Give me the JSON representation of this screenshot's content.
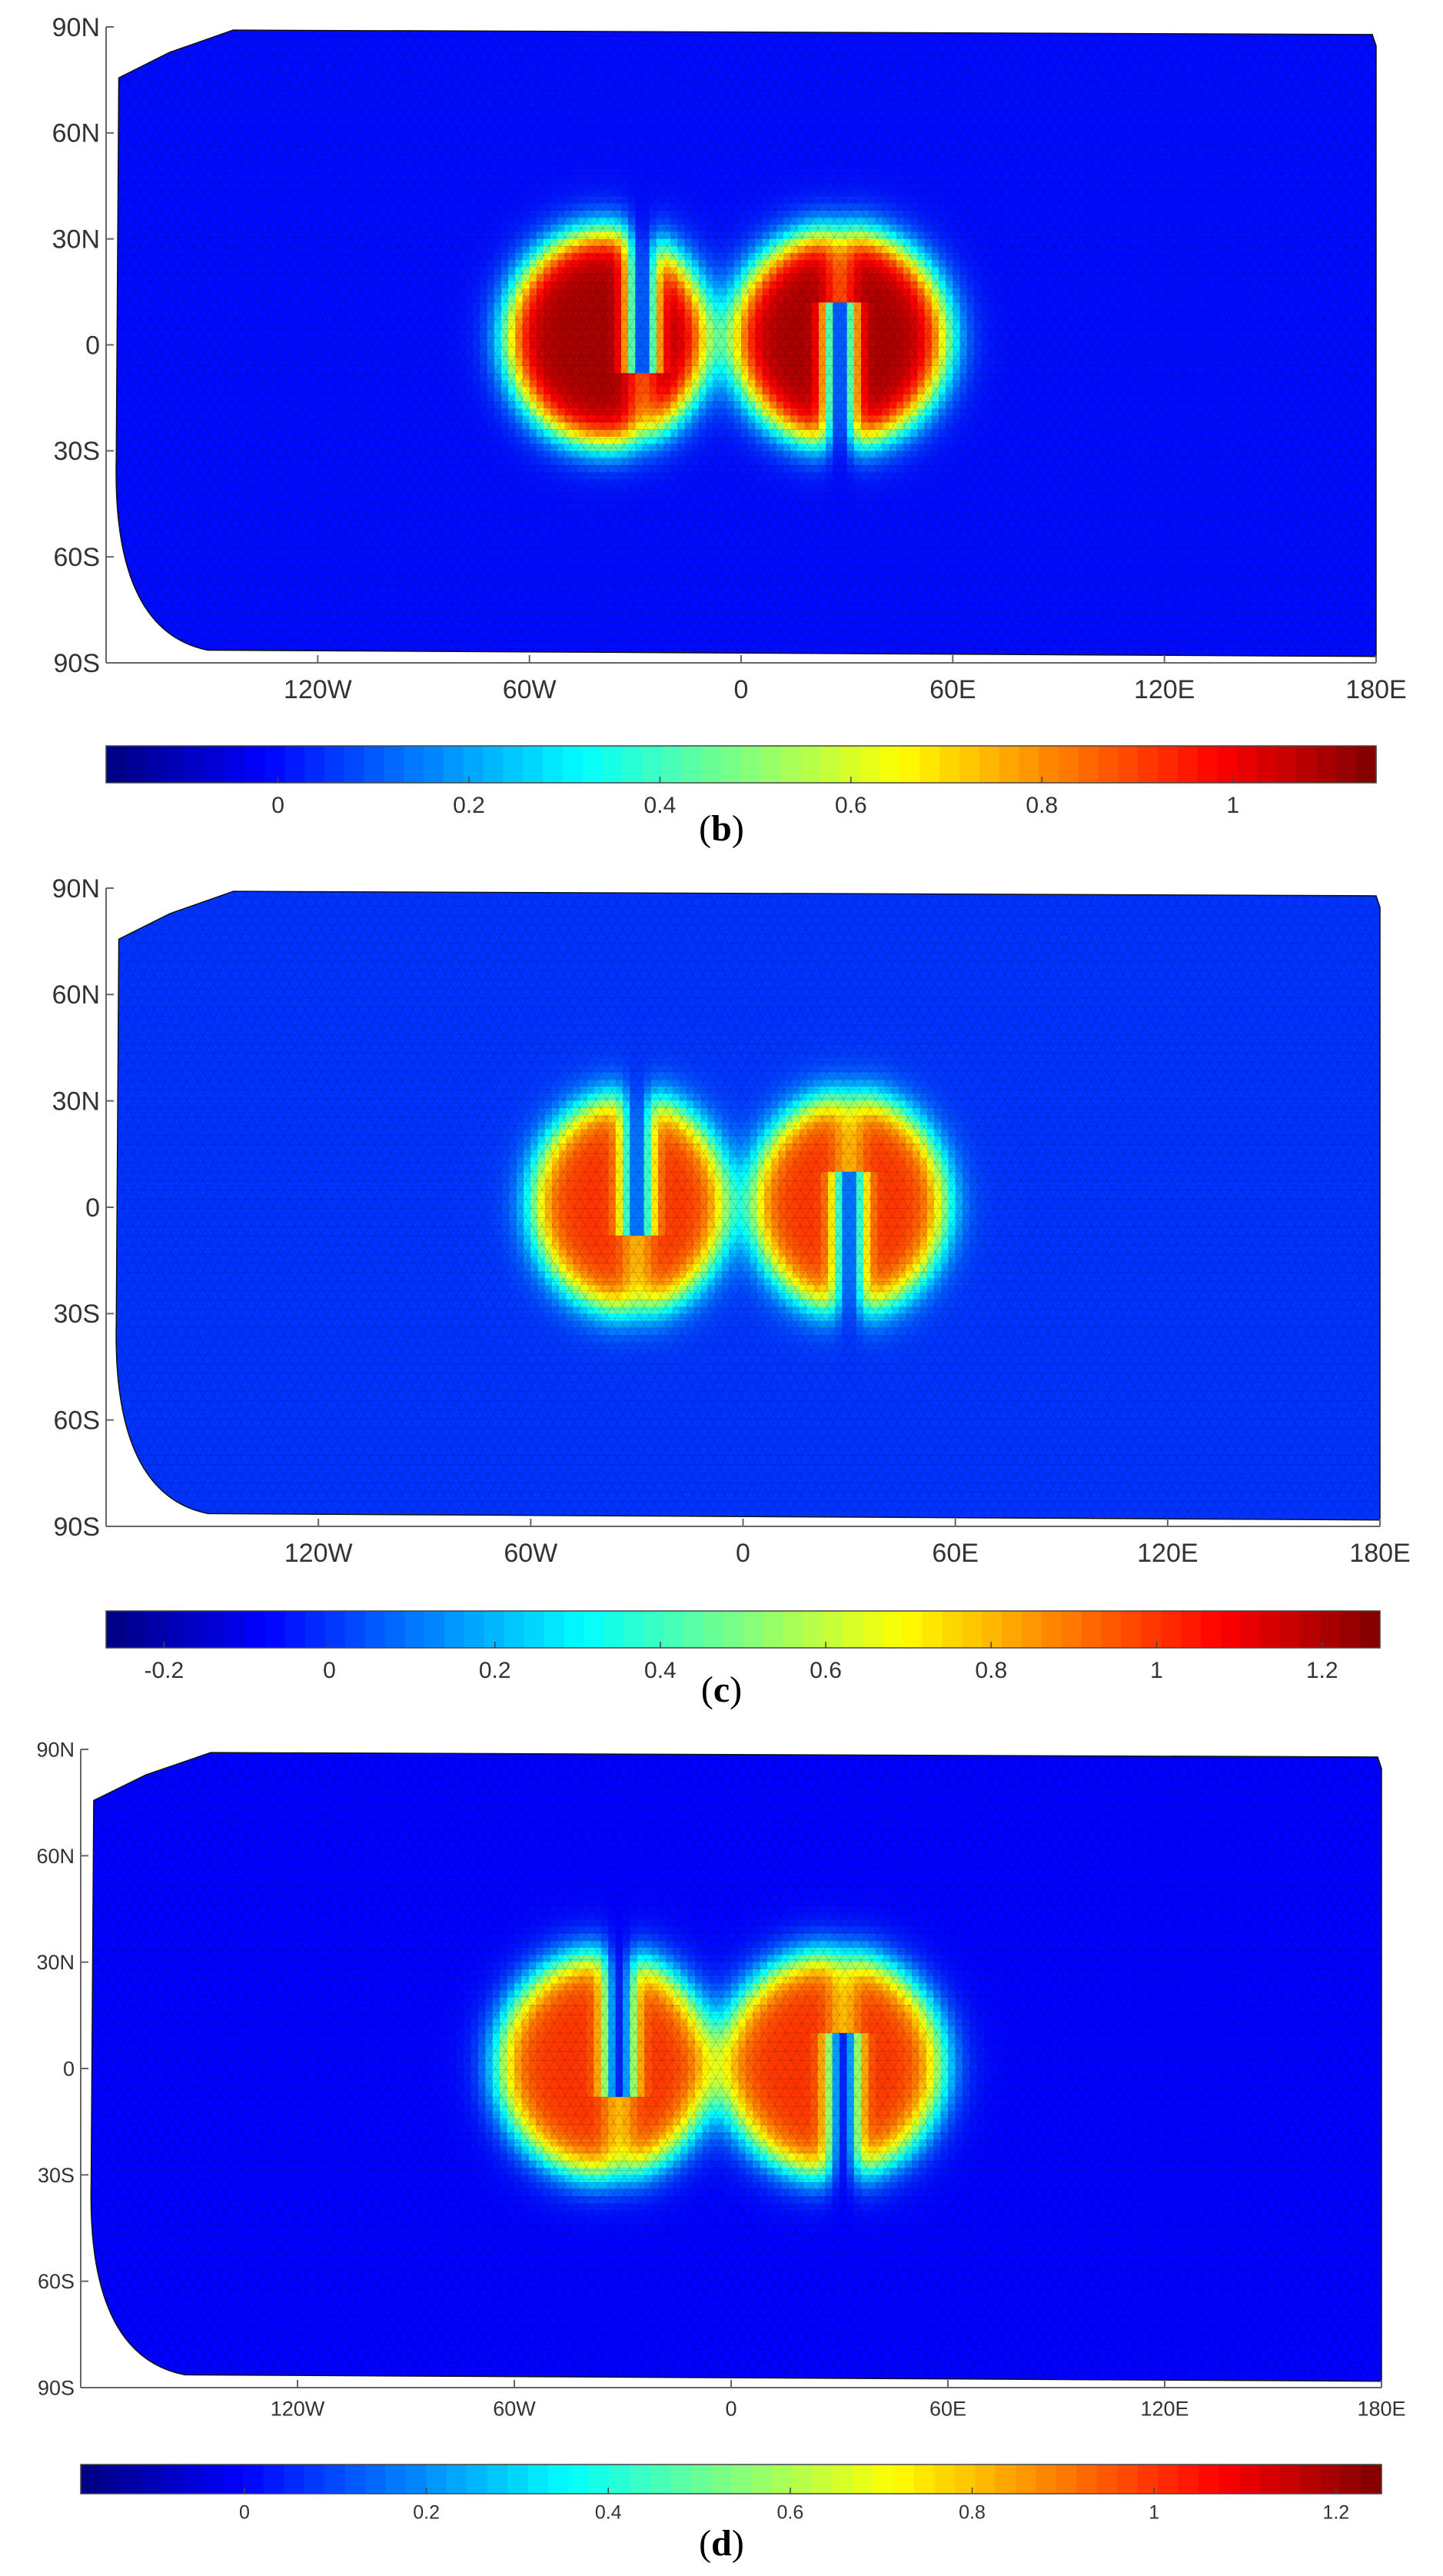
{
  "chart_data": [
    {
      "type": "heatmap",
      "panel_label": "b",
      "x_ticks": [
        "120W",
        "60W",
        "0",
        "60E",
        "120E",
        "180E"
      ],
      "y_ticks": [
        "90N",
        "60N",
        "30N",
        "0",
        "30S",
        "60S",
        "90S"
      ],
      "colorbar": {
        "range": [
          -0.18,
          1.15
        ],
        "ticks": [
          "0",
          "0.2",
          "0.4",
          "0.6",
          "0.8",
          "1"
        ],
        "tick_values": [
          0,
          0.2,
          0.4,
          0.6,
          0.8,
          1
        ]
      },
      "field": {
        "background_value": 0.0,
        "peak_value": 1.1,
        "features": [
          {
            "name": "left",
            "center_lon": -38,
            "center_lat": 2,
            "radius_lon": 28,
            "radius_lat": 30,
            "slot_lon": -28
          },
          {
            "name": "right",
            "center_lon": 28,
            "center_lat": 2,
            "radius_lon": 30,
            "radius_lat": 30,
            "slot_lon": 28
          }
        ]
      }
    },
    {
      "type": "heatmap",
      "panel_label": "c",
      "x_ticks": [
        "120W",
        "60W",
        "0",
        "60E",
        "120E",
        "180E"
      ],
      "y_ticks": [
        "90N",
        "60N",
        "30N",
        "0",
        "30S",
        "60S",
        "90S"
      ],
      "colorbar": {
        "range": [
          -0.27,
          1.27
        ],
        "ticks": [
          "-0.2",
          "0",
          "0.2",
          "0.4",
          "0.6",
          "0.8",
          "1",
          "1.2"
        ],
        "tick_values": [
          -0.2,
          0,
          0.2,
          0.4,
          0.6,
          0.8,
          1,
          1.2
        ]
      },
      "field": {
        "background_value": 0.0,
        "peak_value": 1.0,
        "features": [
          {
            "name": "left",
            "center_lon": -32,
            "center_lat": 1,
            "radius_lon": 27,
            "radius_lat": 30,
            "slot_lon": -30
          },
          {
            "name": "right",
            "center_lon": 30,
            "center_lat": 1,
            "radius_lon": 27,
            "radius_lat": 30,
            "slot_lon": 30
          }
        ]
      }
    },
    {
      "type": "heatmap",
      "panel_label": "d",
      "x_ticks": [
        "120W",
        "60W",
        "0",
        "60E",
        "120E",
        "180E"
      ],
      "y_ticks": [
        "90N",
        "60N",
        "30N",
        "0",
        "30S",
        "60S",
        "90S"
      ],
      "colorbar": {
        "range": [
          -0.18,
          1.25
        ],
        "ticks": [
          "0",
          "0.2",
          "0.4",
          "0.6",
          "0.8",
          "1",
          "1.2"
        ],
        "tick_values": [
          0,
          0.2,
          0.4,
          0.6,
          0.8,
          1,
          1.2
        ]
      },
      "field": {
        "background_value": 0.0,
        "peak_value": 1.0,
        "features": [
          {
            "name": "left",
            "center_lon": -35,
            "center_lat": 1,
            "radius_lon": 29,
            "radius_lat": 31,
            "slot_lon": -31
          },
          {
            "name": "right",
            "center_lon": 28,
            "center_lat": 1,
            "radius_lon": 30,
            "radius_lat": 31,
            "slot_lon": 31
          }
        ]
      }
    }
  ]
}
